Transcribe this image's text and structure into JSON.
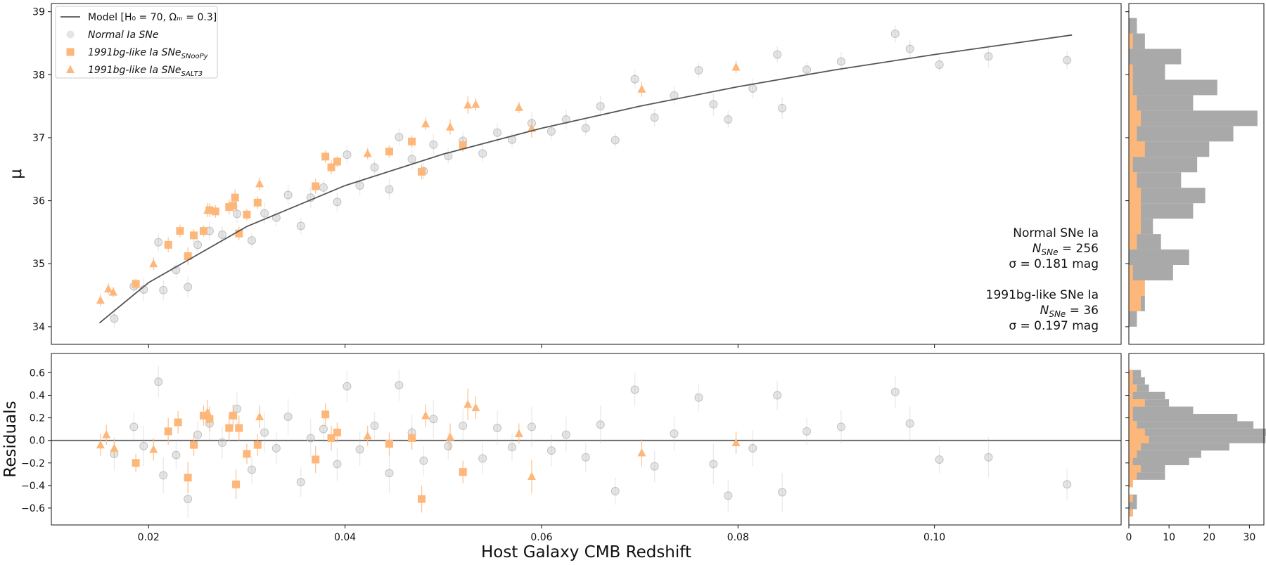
{
  "chart_data": [
    {
      "type": "scatter",
      "ylabel": "μ",
      "xlim": [
        0.0101,
        0.119
      ],
      "ylim": [
        33.72,
        39.13
      ],
      "xticks": [
        0.02,
        0.04,
        0.06,
        0.08,
        {
          "value": 0.1,
          "label": "0.10"
        }
      ],
      "yticks": [
        34,
        35,
        36,
        37,
        38,
        39
      ],
      "model": {
        "name": "Model [H₀ = 70, Ωₘ = 0.3]",
        "color": "#555555",
        "x": [
          0.015,
          0.02,
          0.03,
          0.04,
          0.05,
          0.06,
          0.07,
          0.08,
          0.09,
          0.1,
          0.114
        ],
        "values": [
          34.06,
          34.7,
          35.59,
          36.24,
          36.74,
          37.15,
          37.5,
          37.81,
          38.08,
          38.32,
          38.63
        ]
      },
      "series": [
        {
          "name": "Normal Ia SNe",
          "marker": "o",
          "color": "#b5b5b5",
          "alpha": 0.35,
          "x": [
            0.0165,
            0.0185,
            0.0195,
            0.021,
            0.0215,
            0.0228,
            0.024,
            0.025,
            0.0262,
            0.0275,
            0.029,
            0.0305,
            0.0318,
            0.033,
            0.0342,
            0.0355,
            0.0365,
            0.0378,
            0.0392,
            0.0402,
            0.0415,
            0.043,
            0.0445,
            0.0455,
            0.0468,
            0.048,
            0.049,
            0.0505,
            0.052,
            0.054,
            0.0555,
            0.057,
            0.059,
            0.061,
            0.0625,
            0.0645,
            0.066,
            0.0675,
            0.0695,
            0.0715,
            0.0735,
            0.076,
            0.0775,
            0.079,
            0.0815,
            0.084,
            0.0845,
            0.087,
            0.0905,
            0.096,
            0.0975,
            0.1005,
            0.1055,
            0.1135
          ],
          "values": [
            34.13,
            34.64,
            34.59,
            35.34,
            34.58,
            34.9,
            34.63,
            35.3,
            35.52,
            35.46,
            35.79,
            35.37,
            35.8,
            35.73,
            36.09,
            35.6,
            36.05,
            36.21,
            35.98,
            36.73,
            36.24,
            36.53,
            36.18,
            37.01,
            36.66,
            36.47,
            36.89,
            36.71,
            36.95,
            36.75,
            37.08,
            36.97,
            37.23,
            37.1,
            37.29,
            37.15,
            37.5,
            36.96,
            37.93,
            37.32,
            37.67,
            38.07,
            37.53,
            37.29,
            37.78,
            38.32,
            37.47,
            38.08,
            38.21,
            38.65,
            38.41,
            38.16,
            38.29,
            38.23
          ],
          "errors": [
            0.15,
            0.12,
            0.18,
            0.14,
            0.16,
            0.13,
            0.17,
            0.12,
            0.15,
            0.14,
            0.15,
            0.12,
            0.18,
            0.14,
            0.16,
            0.13,
            0.17,
            0.12,
            0.15,
            0.14,
            0.15,
            0.12,
            0.18,
            0.14,
            0.16,
            0.13,
            0.17,
            0.12,
            0.15,
            0.14,
            0.15,
            0.12,
            0.18,
            0.14,
            0.16,
            0.13,
            0.17,
            0.12,
            0.15,
            0.14,
            0.15,
            0.12,
            0.18,
            0.14,
            0.16,
            0.13,
            0.17,
            0.12,
            0.15,
            0.14,
            0.15,
            0.12,
            0.18,
            0.14
          ]
        },
        {
          "name": "1991bg-like Ia SNe",
          "name_sub": "SNooPy",
          "marker": "s",
          "color": "#fdb77a",
          "alpha": 1,
          "x": [
            0.0187,
            0.022,
            0.0232,
            0.024,
            0.0246,
            0.0256,
            0.0262,
            0.0268,
            0.0282,
            0.0286,
            0.0288,
            0.0292,
            0.03,
            0.0311,
            0.037,
            0.038,
            0.0386,
            0.0392,
            0.0445,
            0.0468,
            0.0478,
            0.052
          ],
          "values": [
            34.68,
            35.3,
            35.52,
            35.12,
            35.45,
            35.52,
            35.85,
            35.83,
            35.9,
            35.92,
            36.05,
            35.48,
            35.78,
            35.97,
            36.23,
            36.7,
            36.53,
            36.62,
            36.78,
            36.94,
            36.46,
            36.88
          ],
          "errors": [
            0.08,
            0.12,
            0.1,
            0.14,
            0.1,
            0.09,
            0.11,
            0.1,
            0.12,
            0.1,
            0.13,
            0.11,
            0.09,
            0.1,
            0.12,
            0.1,
            0.11,
            0.09,
            0.1,
            0.1,
            0.12,
            0.1
          ]
        },
        {
          "name": "1991bg-like Ia SNe",
          "name_sub": "SALT3",
          "marker": "^",
          "color": "#fdb77a",
          "alpha": 1,
          "x": [
            0.0151,
            0.0159,
            0.0164,
            0.0205,
            0.026,
            0.0313,
            0.0423,
            0.0482,
            0.0507,
            0.0525,
            0.0533,
            0.0577,
            0.059,
            0.0702,
            0.0798
          ],
          "values": [
            34.42,
            34.6,
            34.55,
            35.0,
            35.85,
            36.27,
            36.75,
            37.22,
            37.17,
            37.52,
            37.53,
            37.48,
            37.15,
            37.77,
            38.12
          ],
          "errors": [
            0.1,
            0.09,
            0.08,
            0.1,
            0.11,
            0.1,
            0.09,
            0.1,
            0.12,
            0.14,
            0.1,
            0.09,
            0.15,
            0.12,
            0.1
          ]
        }
      ],
      "annotations": [
        [
          "Normal SNe Ia",
          {
            "text": "N",
            "sub": "SNe",
            "rest": " = 256"
          },
          "σ = 0.181 mag"
        ],
        [
          "1991bg-like SNe Ia",
          {
            "text": "N",
            "sub": "SNe",
            "rest": " = 36"
          },
          "σ = 0.197 mag"
        ]
      ]
    },
    {
      "type": "scatter",
      "xlabel": "Host Galaxy CMB Redshift",
      "ylabel": "Residuals",
      "xlim": [
        0.0101,
        0.119
      ],
      "ylim": [
        -0.75,
        0.771
      ],
      "xticks": [
        0.02,
        0.04,
        0.06,
        0.08,
        {
          "value": 0.1,
          "label": "0.10"
        }
      ],
      "yticks": [
        {
          "value": -0.6,
          "label": "−0.6"
        },
        {
          "value": -0.4,
          "label": "−0.4"
        },
        {
          "value": -0.2,
          "label": "−0.2"
        },
        {
          "value": 0,
          "label": "0.0"
        },
        0.2,
        0.4,
        0.6
      ],
      "hline": 0,
      "hline_color": "#555555",
      "series": [
        {
          "marker": "o",
          "color": "#b5b5b5",
          "alpha": 0.35,
          "x": [
            0.0165,
            0.0185,
            0.0195,
            0.021,
            0.0215,
            0.0228,
            0.024,
            0.025,
            0.0262,
            0.0275,
            0.029,
            0.0305,
            0.0318,
            0.033,
            0.0342,
            0.0355,
            0.0365,
            0.0378,
            0.0392,
            0.0402,
            0.0415,
            0.043,
            0.0445,
            0.0455,
            0.0468,
            0.048,
            0.049,
            0.0505,
            0.052,
            0.054,
            0.0555,
            0.057,
            0.059,
            0.061,
            0.0625,
            0.0645,
            0.066,
            0.0675,
            0.0695,
            0.0715,
            0.0735,
            0.076,
            0.0775,
            0.079,
            0.0815,
            0.084,
            0.0845,
            0.087,
            0.0905,
            0.096,
            0.0975,
            0.1005,
            0.1055,
            0.1135
          ],
          "values": [
            -0.12,
            0.12,
            -0.05,
            0.52,
            -0.31,
            -0.13,
            -0.52,
            0.05,
            0.15,
            -0.02,
            0.28,
            -0.26,
            0.07,
            -0.07,
            0.21,
            -0.37,
            0.02,
            0.1,
            -0.21,
            0.48,
            -0.08,
            0.13,
            -0.29,
            0.49,
            0.07,
            -0.18,
            0.19,
            -0.05,
            0.13,
            -0.16,
            0.11,
            -0.06,
            0.12,
            -0.09,
            0.05,
            -0.15,
            0.14,
            -0.45,
            0.45,
            -0.23,
            0.06,
            0.38,
            -0.21,
            -0.49,
            -0.07,
            0.4,
            -0.46,
            0.08,
            0.12,
            0.43,
            0.15,
            -0.17,
            -0.15,
            -0.39
          ],
          "errors": [
            0.15,
            0.12,
            0.18,
            0.14,
            0.16,
            0.13,
            0.17,
            0.12,
            0.15,
            0.14,
            0.15,
            0.12,
            0.18,
            0.14,
            0.16,
            0.13,
            0.17,
            0.12,
            0.15,
            0.14,
            0.15,
            0.12,
            0.18,
            0.14,
            0.16,
            0.13,
            0.17,
            0.12,
            0.15,
            0.14,
            0.15,
            0.12,
            0.18,
            0.14,
            0.16,
            0.13,
            0.17,
            0.12,
            0.15,
            0.14,
            0.15,
            0.12,
            0.18,
            0.14,
            0.16,
            0.13,
            0.17,
            0.12,
            0.15,
            0.14,
            0.15,
            0.12,
            0.18,
            0.14
          ]
        },
        {
          "marker": "s",
          "color": "#fdb77a",
          "alpha": 1,
          "x": [
            0.0187,
            0.022,
            0.023,
            0.024,
            0.0246,
            0.0256,
            0.0262,
            0.0282,
            0.0286,
            0.0289,
            0.0292,
            0.03,
            0.0311,
            0.037,
            0.038,
            0.0386,
            0.0392,
            0.0445,
            0.0468,
            0.0478,
            0.052
          ],
          "values": [
            -0.2,
            0.08,
            0.16,
            -0.33,
            -0.04,
            0.22,
            0.19,
            0.11,
            0.22,
            -0.39,
            0.11,
            -0.12,
            -0.04,
            -0.17,
            0.23,
            0.02,
            0.07,
            -0.03,
            0.02,
            -0.52,
            -0.28
          ],
          "errors": [
            0.08,
            0.12,
            0.1,
            0.14,
            0.1,
            0.09,
            0.11,
            0.12,
            0.1,
            0.13,
            0.11,
            0.09,
            0.1,
            0.12,
            0.1,
            0.11,
            0.09,
            0.1,
            0.1,
            0.12,
            0.1
          ]
        },
        {
          "marker": "^",
          "color": "#fdb77a",
          "alpha": 1,
          "x": [
            0.0151,
            0.0157,
            0.0165,
            0.0205,
            0.026,
            0.0313,
            0.0423,
            0.0482,
            0.0507,
            0.0525,
            0.0533,
            0.0577,
            0.059,
            0.0702,
            0.0798
          ],
          "values": [
            -0.04,
            0.05,
            -0.07,
            -0.08,
            0.25,
            0.21,
            0.04,
            0.22,
            0.03,
            0.32,
            0.29,
            0.06,
            -0.32,
            -0.11,
            -0.02
          ],
          "errors": [
            0.1,
            0.09,
            0.08,
            0.1,
            0.11,
            0.1,
            0.09,
            0.1,
            0.12,
            0.14,
            0.1,
            0.09,
            0.15,
            0.12,
            0.1
          ]
        }
      ]
    },
    {
      "type": "histogram",
      "orientation": "horizontal",
      "xlim": [
        0,
        33.6
      ],
      "ylim": [
        33.72,
        39.13
      ],
      "yticks": [
        34,
        35,
        36,
        37,
        38,
        39
      ],
      "bins": [
        34.0,
        34.245,
        34.49,
        34.735,
        34.98,
        35.225,
        35.47,
        35.715,
        35.96,
        36.205,
        36.45,
        36.695,
        36.94,
        37.185,
        37.43,
        37.675,
        37.92,
        38.165,
        38.41,
        38.655,
        38.9
      ],
      "series": [
        {
          "color": "#a9a9a9",
          "values": [
            2,
            4,
            1,
            11,
            15,
            8,
            6,
            16,
            19,
            13,
            17,
            20,
            26,
            32,
            16,
            22,
            9,
            13,
            4,
            2
          ]
        },
        {
          "color": "#fdb77a",
          "values": [
            0,
            3,
            4,
            1,
            0,
            2,
            3,
            3,
            3,
            2,
            1,
            4,
            2,
            3,
            2,
            1,
            1,
            0,
            1,
            0
          ]
        }
      ]
    },
    {
      "type": "histogram",
      "orientation": "horizontal",
      "xlim": [
        0,
        33.6
      ],
      "ylim": [
        -0.75,
        0.771
      ],
      "xticks": [
        0,
        10,
        20,
        30
      ],
      "yticks": [
        -0.6,
        -0.4,
        -0.2,
        0,
        0.2,
        0.4,
        0.6
      ],
      "bins": [
        -0.675,
        -0.61,
        -0.545,
        -0.48,
        -0.415,
        -0.35,
        -0.285,
        -0.22,
        -0.155,
        -0.09,
        -0.025,
        0.04,
        0.105,
        0.17,
        0.235,
        0.3,
        0.365,
        0.43,
        0.495,
        0.56,
        0.625
      ],
      "series": [
        {
          "color": "#a9a9a9",
          "values": [
            1,
            2,
            2,
            0,
            1,
            9,
            9,
            15,
            18,
            25,
            34,
            35,
            31,
            27,
            16,
            10,
            9,
            5,
            4,
            3
          ]
        },
        {
          "color": "#fdb77a",
          "values": [
            1,
            0,
            1,
            0,
            1,
            2,
            3,
            1,
            2,
            3,
            5,
            4,
            2,
            1,
            1,
            4,
            1,
            2,
            1,
            1
          ]
        }
      ]
    }
  ]
}
